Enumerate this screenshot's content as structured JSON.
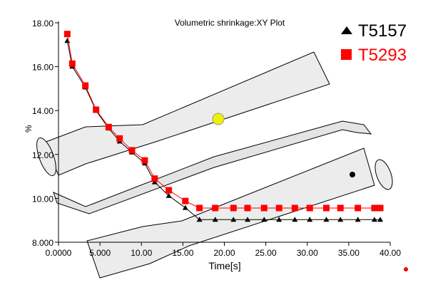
{
  "chart_data": {
    "type": "line",
    "title": "Volumetric shrinkage:XY Plot",
    "xlabel": "Time[s]",
    "ylabel": "%",
    "xlim": [
      0,
      40
    ],
    "ylim": [
      8,
      18
    ],
    "x_ticks": [
      "0.0000",
      "5.000",
      "10.00",
      "15.00",
      "20.00",
      "25.00",
      "30.00",
      "35.00",
      "40.00"
    ],
    "y_ticks": [
      "8.000",
      "10.00",
      "12.00",
      "14.00",
      "16.00",
      "18.00"
    ],
    "grid": false,
    "legend_position": "top-right",
    "x": [
      1.06,
      1.66,
      3.24,
      4.53,
      6.05,
      7.37,
      8.86,
      10.4,
      11.6,
      13.3,
      15.3,
      17.0,
      18.9,
      21.1,
      22.8,
      24.8,
      26.6,
      28.5,
      30.3,
      32.3,
      34.0,
      36.1,
      38.1,
      38.8
    ],
    "series": [
      {
        "name": "T5157",
        "color": "#000000",
        "marker": "triangle",
        "values": [
          17.18,
          16.01,
          15.06,
          14.0,
          13.19,
          12.6,
          12.1,
          11.6,
          10.74,
          10.12,
          9.57,
          9.03,
          9.03,
          9.03,
          9.03,
          9.03,
          9.03,
          9.03,
          9.03,
          9.03,
          9.03,
          9.03,
          9.03,
          9.03
        ]
      },
      {
        "name": "T5293",
        "color": "#ff0000",
        "marker": "square",
        "values": [
          17.49,
          16.14,
          15.14,
          14.04,
          13.25,
          12.73,
          12.19,
          11.73,
          10.9,
          10.37,
          9.88,
          9.56,
          9.56,
          9.56,
          9.56,
          9.56,
          9.56,
          9.56,
          9.56,
          9.56,
          9.56,
          9.56,
          9.56,
          9.56
        ]
      }
    ]
  }
}
